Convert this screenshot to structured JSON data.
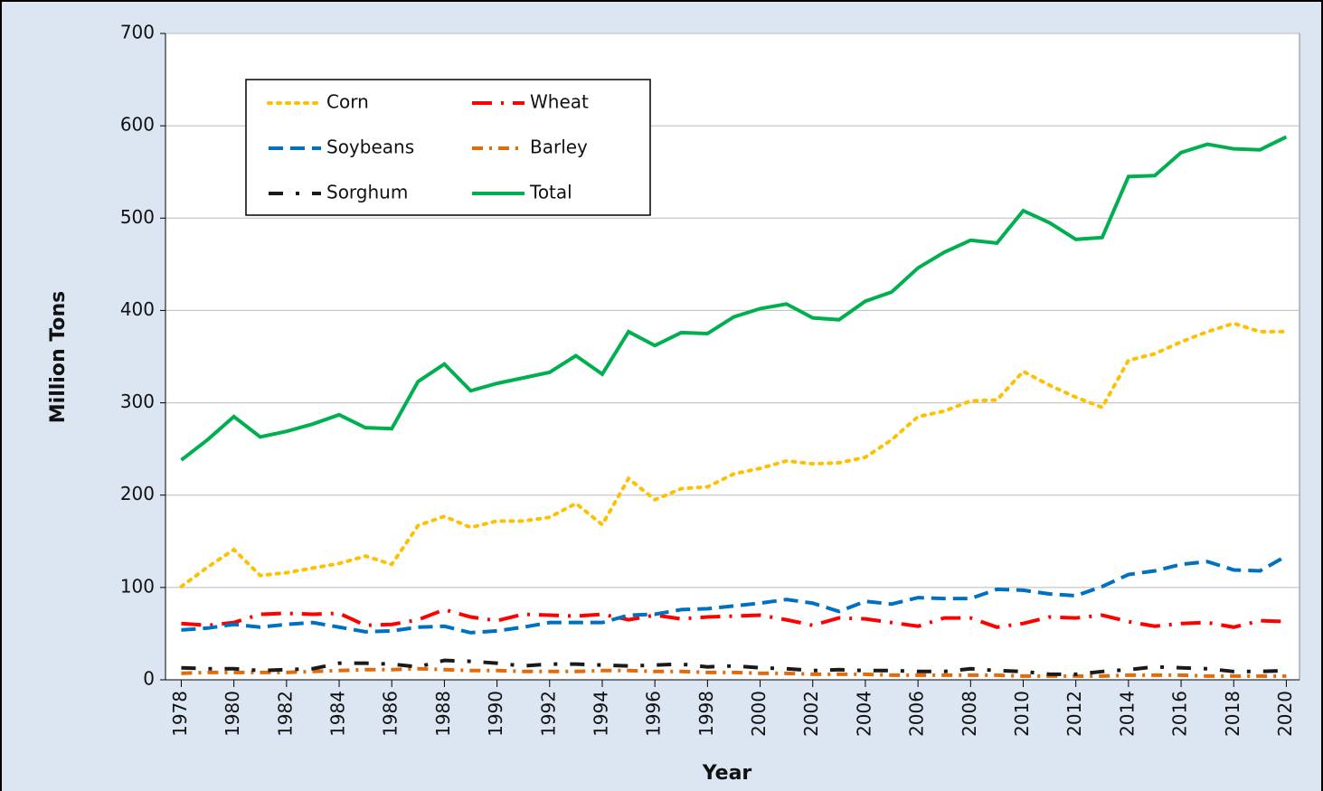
{
  "chart_data": {
    "type": "line",
    "y_label": "Million Tons",
    "x_label": "Year",
    "x": [
      1978,
      1979,
      1980,
      1981,
      1982,
      1983,
      1984,
      1985,
      1986,
      1987,
      1988,
      1989,
      1990,
      1991,
      1992,
      1993,
      1994,
      1995,
      1996,
      1997,
      1998,
      1999,
      2000,
      2001,
      2002,
      2003,
      2004,
      2005,
      2006,
      2007,
      2008,
      2009,
      2010,
      2011,
      2012,
      2013,
      2014,
      2015,
      2016,
      2017,
      2018,
      2019,
      2020
    ],
    "series": [
      {
        "name": "Corn",
        "color": "#ffc000",
        "dash": "dot",
        "values": [
          101,
          122,
          141,
          113,
          116,
          121,
          126,
          134,
          125,
          167,
          177,
          165,
          172,
          172,
          176,
          191,
          168,
          218,
          195,
          207,
          209,
          223,
          229,
          237,
          234,
          235,
          241,
          260,
          285,
          291,
          302,
          303,
          334,
          319,
          306,
          295,
          346,
          353,
          366,
          377,
          386,
          377,
          377
        ]
      },
      {
        "name": "Wheat",
        "color": "#ff0000",
        "dash": "longdashdot",
        "values": [
          61,
          59,
          62,
          71,
          72,
          71,
          72,
          59,
          60,
          65,
          76,
          68,
          64,
          71,
          70,
          69,
          71,
          65,
          70,
          66,
          68,
          69,
          70,
          65,
          59,
          67,
          66,
          62,
          58,
          67,
          67,
          57,
          61,
          68,
          67,
          70,
          63,
          58,
          61,
          62,
          57,
          64,
          63
        ]
      },
      {
        "name": "Soybeans",
        "color": "#0070c0",
        "dash": "dash",
        "values": [
          54,
          56,
          60,
          57,
          60,
          62,
          57,
          52,
          53,
          57,
          58,
          51,
          53,
          57,
          62,
          62,
          62,
          70,
          71,
          76,
          77,
          80,
          83,
          87,
          83,
          74,
          85,
          82,
          89,
          88,
          88,
          98,
          97,
          93,
          91,
          101,
          114,
          118,
          125,
          128,
          119,
          118,
          134
        ]
      },
      {
        "name": "Barley",
        "color": "#e36c0a",
        "dash": "dashdot",
        "values": [
          7,
          8,
          8,
          8,
          8,
          9,
          10,
          11,
          11,
          12,
          11,
          10,
          10,
          9,
          9,
          9,
          10,
          10,
          9,
          9,
          8,
          8,
          7,
          7,
          6,
          6,
          6,
          5,
          5,
          5,
          5,
          5,
          4,
          4,
          4,
          4,
          5,
          5,
          5,
          4,
          4,
          4,
          4
        ]
      },
      {
        "name": "Sorghum",
        "color": "#1a1a1a",
        "dash": "dashdotgap",
        "values": [
          13,
          12,
          12,
          10,
          11,
          12,
          18,
          18,
          17,
          14,
          21,
          20,
          18,
          15,
          17,
          17,
          16,
          15,
          16,
          17,
          14,
          15,
          13,
          12,
          10,
          11,
          10,
          10,
          9,
          9,
          12,
          10,
          9,
          6,
          6,
          9,
          11,
          14,
          13,
          12,
          9,
          9,
          10
        ]
      },
      {
        "name": "Total",
        "color": "#00b050",
        "dash": "solid",
        "values": [
          238,
          260,
          285,
          263,
          269,
          277,
          287,
          273,
          272,
          323,
          342,
          313,
          321,
          327,
          333,
          351,
          331,
          377,
          362,
          376,
          375,
          393,
          402,
          407,
          392,
          390,
          410,
          420,
          446,
          463,
          476,
          473,
          508,
          495,
          477,
          479,
          545,
          546,
          571,
          580,
          575,
          574,
          588
        ]
      }
    ],
    "xlim": [
      1977.4,
      2020.5
    ],
    "xticks": [
      1978,
      1980,
      1982,
      1984,
      1986,
      1988,
      1990,
      1992,
      1994,
      1996,
      1998,
      2000,
      2002,
      2004,
      2006,
      2008,
      2010,
      2012,
      2014,
      2016,
      2018,
      2020
    ],
    "ylim": [
      0,
      700
    ],
    "yticks": [
      0,
      100,
      200,
      300,
      400,
      500,
      600,
      700
    ],
    "grid": true
  }
}
